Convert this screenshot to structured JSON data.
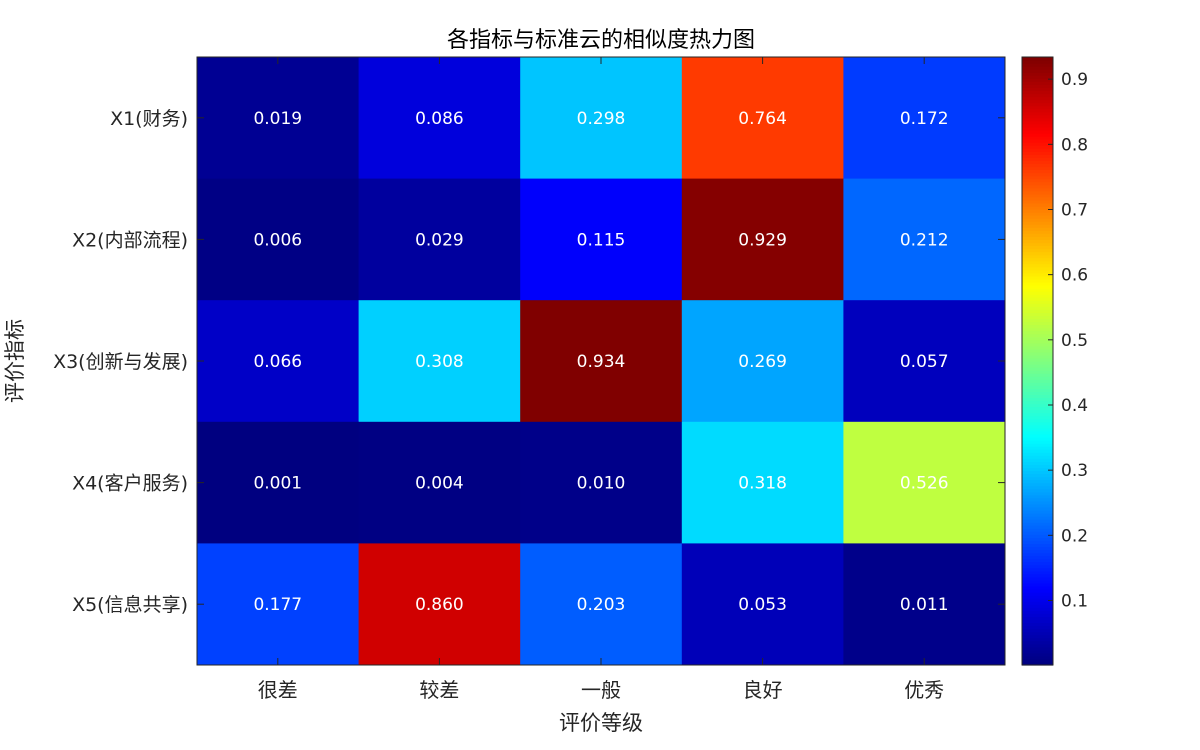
{
  "chart_data": {
    "type": "heatmap",
    "title": "各指标与标准云的相似度热力图",
    "xlabel": "评价等级",
    "ylabel": "评价指标",
    "x_categories": [
      "很差",
      "较差",
      "一般",
      "良好",
      "优秀"
    ],
    "y_categories": [
      "X1(财务)",
      "X2(内部流程)",
      "X3(创新与发展)",
      "X4(客户服务)",
      "X5(信息共享)"
    ],
    "values": [
      [
        0.019,
        0.086,
        0.298,
        0.764,
        0.172
      ],
      [
        0.006,
        0.029,
        0.115,
        0.929,
        0.212
      ],
      [
        0.066,
        0.308,
        0.934,
        0.269,
        0.057
      ],
      [
        0.001,
        0.004,
        0.01,
        0.318,
        0.526
      ],
      [
        0.177,
        0.86,
        0.203,
        0.053,
        0.011
      ]
    ],
    "value_labels": [
      [
        "0.019",
        "0.086",
        "0.298",
        "0.764",
        "0.172"
      ],
      [
        "0.006",
        "0.029",
        "0.115",
        "0.929",
        "0.212"
      ],
      [
        "0.066",
        "0.308",
        "0.934",
        "0.269",
        "0.057"
      ],
      [
        "0.001",
        "0.004",
        "0.010",
        "0.318",
        "0.526"
      ],
      [
        "0.177",
        "0.860",
        "0.203",
        "0.053",
        "0.011"
      ]
    ],
    "colormap": "jet",
    "clim": [
      0.001,
      0.934
    ],
    "colorbar_ticks": [
      "0.1",
      "0.2",
      "0.3",
      "0.4",
      "0.5",
      "0.6",
      "0.7",
      "0.8",
      "0.9"
    ],
    "colorbar_location": "right",
    "grid": false
  }
}
